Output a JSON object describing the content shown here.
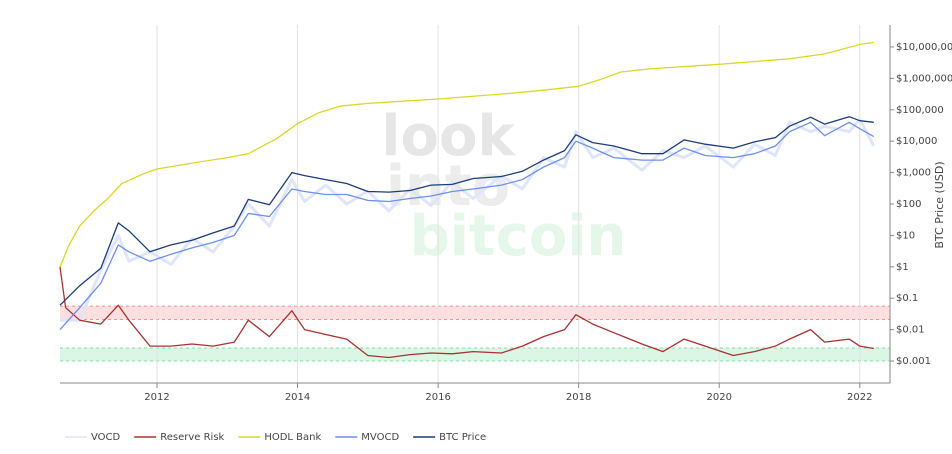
{
  "chart_data": {
    "type": "line",
    "y_axis_title": "BTC Price (USD)",
    "watermark": [
      "look",
      "into",
      "bitcoin"
    ],
    "log_y": true,
    "grid": true,
    "legend_position": "bottom",
    "xlim": [
      2010.62,
      2022.43
    ],
    "xticks": [
      2012,
      2014,
      2016,
      2018,
      2020,
      2022
    ],
    "ylim": [
      0.0002,
      50000000
    ],
    "yticks": [
      {
        "value": 0.001,
        "label": "$0.001"
      },
      {
        "value": 0.01,
        "label": "$0.01"
      },
      {
        "value": 0.1,
        "label": "$0.1"
      },
      {
        "value": 1,
        "label": "$1"
      },
      {
        "value": 10,
        "label": "$10"
      },
      {
        "value": 100,
        "label": "$100"
      },
      {
        "value": 1000,
        "label": "$1,000"
      },
      {
        "value": 10000,
        "label": "$10,000"
      },
      {
        "value": 100000,
        "label": "$100,000"
      },
      {
        "value": 1000000,
        "label": "$1,000,000"
      },
      {
        "value": 10000000,
        "label": "$10,000,000"
      }
    ],
    "zones": [
      {
        "range": [
          0.021,
          0.056
        ],
        "color": "#ff4d4d"
      },
      {
        "range": [
          0.001,
          0.0026
        ],
        "color": "#3ccf6e"
      }
    ],
    "series": [
      {
        "name": "VOCD",
        "color": "#dfe5fc",
        "x": [
          2010.62,
          2010.9,
          2011.2,
          2011.45,
          2011.6,
          2011.9,
          2012.2,
          2012.5,
          2012.8,
          2013.1,
          2013.3,
          2013.6,
          2013.92,
          2014.1,
          2014.4,
          2014.7,
          2015.0,
          2015.3,
          2015.6,
          2015.9,
          2016.2,
          2016.5,
          2016.9,
          2017.2,
          2017.5,
          2017.8,
          2017.96,
          2018.2,
          2018.5,
          2018.9,
          2019.2,
          2019.5,
          2019.8,
          2020.2,
          2020.5,
          2020.8,
          2021.0,
          2021.3,
          2021.5,
          2021.85,
          2022.0,
          2022.2
        ],
        "values": [
          0.02,
          0.02,
          0.8,
          10,
          1.5,
          3,
          1.2,
          8,
          3,
          20,
          100,
          20,
          600,
          120,
          400,
          100,
          260,
          60,
          300,
          90,
          500,
          150,
          800,
          300,
          3000,
          1500,
          20000,
          3000,
          6000,
          1200,
          5000,
          3000,
          7000,
          1500,
          8000,
          3500,
          40000,
          20000,
          30000,
          20000,
          50000,
          7000
        ]
      },
      {
        "name": "Reserve Risk",
        "color": "#a83232",
        "x": [
          2010.62,
          2010.7,
          2010.9,
          2011.2,
          2011.45,
          2011.6,
          2011.9,
          2012.2,
          2012.5,
          2012.8,
          2013.1,
          2013.3,
          2013.6,
          2013.92,
          2014.1,
          2014.4,
          2014.7,
          2015.0,
          2015.3,
          2015.6,
          2015.9,
          2016.2,
          2016.5,
          2016.9,
          2017.2,
          2017.5,
          2017.8,
          2017.96,
          2018.2,
          2018.5,
          2018.9,
          2019.2,
          2019.5,
          2019.8,
          2020.2,
          2020.5,
          2020.8,
          2021.0,
          2021.3,
          2021.5,
          2021.85,
          2022.0,
          2022.2
        ],
        "values": [
          1,
          0.05,
          0.02,
          0.015,
          0.06,
          0.02,
          0.003,
          0.003,
          0.0035,
          0.003,
          0.004,
          0.02,
          0.006,
          0.04,
          0.01,
          0.007,
          0.005,
          0.0015,
          0.0013,
          0.0016,
          0.0018,
          0.0017,
          0.002,
          0.0018,
          0.003,
          0.006,
          0.01,
          0.03,
          0.015,
          0.008,
          0.0035,
          0.002,
          0.005,
          0.003,
          0.0015,
          0.002,
          0.003,
          0.005,
          0.01,
          0.004,
          0.005,
          0.003,
          0.0025
        ]
      },
      {
        "name": "HODL Bank",
        "color": "#d9d92a",
        "x": [
          2010.62,
          2010.75,
          2010.9,
          2011.1,
          2011.3,
          2011.5,
          2011.8,
          2012,
          2012.5,
          2013,
          2013.3,
          2013.7,
          2014,
          2014.3,
          2014.6,
          2015,
          2016,
          2017,
          2017.5,
          2018,
          2018.3,
          2018.6,
          2019,
          2020,
          2021,
          2021.5,
          2022,
          2022.2
        ],
        "values": [
          1,
          5,
          20,
          60,
          150,
          450,
          900,
          1300,
          2000,
          3000,
          4000,
          12000,
          36000,
          80000,
          130000,
          160000,
          220000,
          330000,
          420000,
          560000,
          900000,
          1600000,
          2000000,
          2800000,
          4200000,
          6000000,
          12000000,
          14000000
        ]
      },
      {
        "name": "MVOCD",
        "color": "#6d8ff0",
        "x": [
          2010.62,
          2010.9,
          2011.2,
          2011.45,
          2011.6,
          2011.9,
          2012.2,
          2012.5,
          2012.8,
          2013.1,
          2013.3,
          2013.6,
          2013.92,
          2014.1,
          2014.4,
          2014.7,
          2015.0,
          2015.3,
          2015.6,
          2015.9,
          2016.2,
          2016.5,
          2016.9,
          2017.2,
          2017.5,
          2017.8,
          2017.96,
          2018.2,
          2018.5,
          2018.9,
          2019.2,
          2019.5,
          2019.8,
          2020.2,
          2020.5,
          2020.8,
          2021.0,
          2021.3,
          2021.5,
          2021.85,
          2022.0,
          2022.2
        ],
        "values": [
          0.01,
          0.05,
          0.3,
          5,
          3,
          1.5,
          2.5,
          4,
          6,
          10,
          50,
          40,
          300,
          250,
          200,
          200,
          130,
          120,
          150,
          180,
          250,
          300,
          400,
          600,
          1500,
          3000,
          10000,
          6000,
          3000,
          2500,
          2500,
          6000,
          3500,
          3000,
          4000,
          7000,
          20000,
          40000,
          15000,
          40000,
          25000,
          14000
        ]
      },
      {
        "name": "BTC Price",
        "color": "#1c3d7a",
        "x": [
          2010.62,
          2010.9,
          2011.2,
          2011.45,
          2011.6,
          2011.9,
          2012.2,
          2012.5,
          2012.8,
          2013.1,
          2013.3,
          2013.6,
          2013.92,
          2014.1,
          2014.4,
          2014.7,
          2015.0,
          2015.3,
          2015.6,
          2015.9,
          2016.2,
          2016.5,
          2016.9,
          2017.2,
          2017.5,
          2017.8,
          2017.96,
          2018.2,
          2018.5,
          2018.9,
          2019.2,
          2019.5,
          2019.8,
          2020.2,
          2020.5,
          2020.8,
          2021.0,
          2021.3,
          2021.5,
          2021.85,
          2022.0,
          2022.2
        ],
        "values": [
          0.06,
          0.25,
          0.9,
          25,
          14,
          3,
          5,
          7,
          12,
          20,
          140,
          95,
          1000,
          800,
          600,
          450,
          250,
          240,
          270,
          400,
          420,
          650,
          750,
          1100,
          2500,
          5000,
          16000,
          9000,
          7000,
          4000,
          4000,
          11000,
          8000,
          6000,
          9500,
          13000,
          30000,
          58000,
          35000,
          60000,
          45000,
          40000
        ]
      }
    ]
  }
}
